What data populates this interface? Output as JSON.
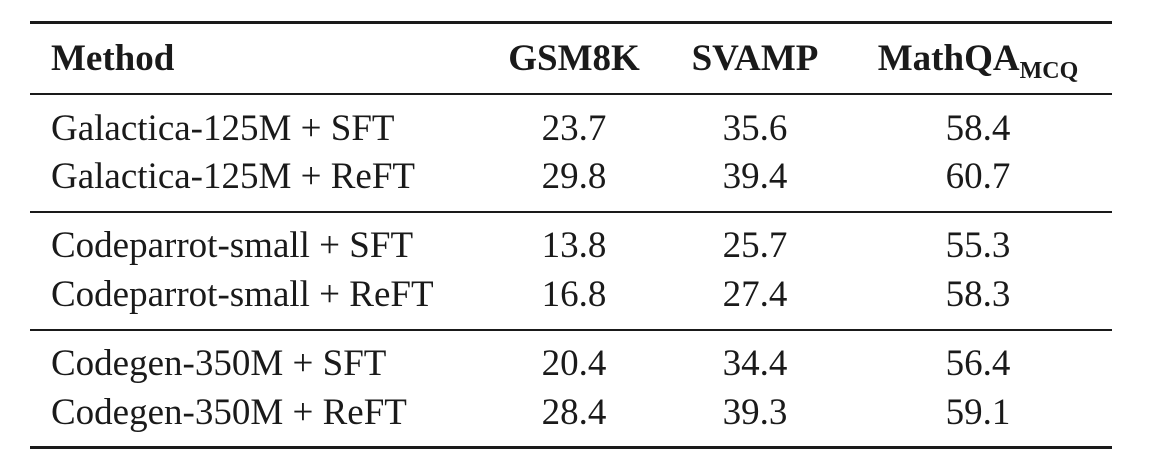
{
  "table": {
    "headers": {
      "method": "Method",
      "gsm8k": "GSM8K",
      "svamp": "SVAMP",
      "mathqa": "MathQA",
      "mathqa_sub": "MCQ"
    },
    "groups": [
      {
        "rows": [
          {
            "method": "Galactica-125M + SFT",
            "gsm8k": "23.7",
            "svamp": "35.6",
            "mathqa": "58.4"
          },
          {
            "method": "Galactica-125M + ReFT",
            "gsm8k": "29.8",
            "svamp": "39.4",
            "mathqa": "60.7"
          }
        ]
      },
      {
        "rows": [
          {
            "method": "Codeparrot-small + SFT",
            "gsm8k": "13.8",
            "svamp": "25.7",
            "mathqa": "55.3"
          },
          {
            "method": "Codeparrot-small + ReFT",
            "gsm8k": "16.8",
            "svamp": "27.4",
            "mathqa": "58.3"
          }
        ]
      },
      {
        "rows": [
          {
            "method": "Codegen-350M + SFT",
            "gsm8k": "20.4",
            "svamp": "34.4",
            "mathqa": "56.4"
          },
          {
            "method": "Codegen-350M + ReFT",
            "gsm8k": "28.4",
            "svamp": "39.3",
            "mathqa": "59.1"
          }
        ]
      }
    ]
  }
}
